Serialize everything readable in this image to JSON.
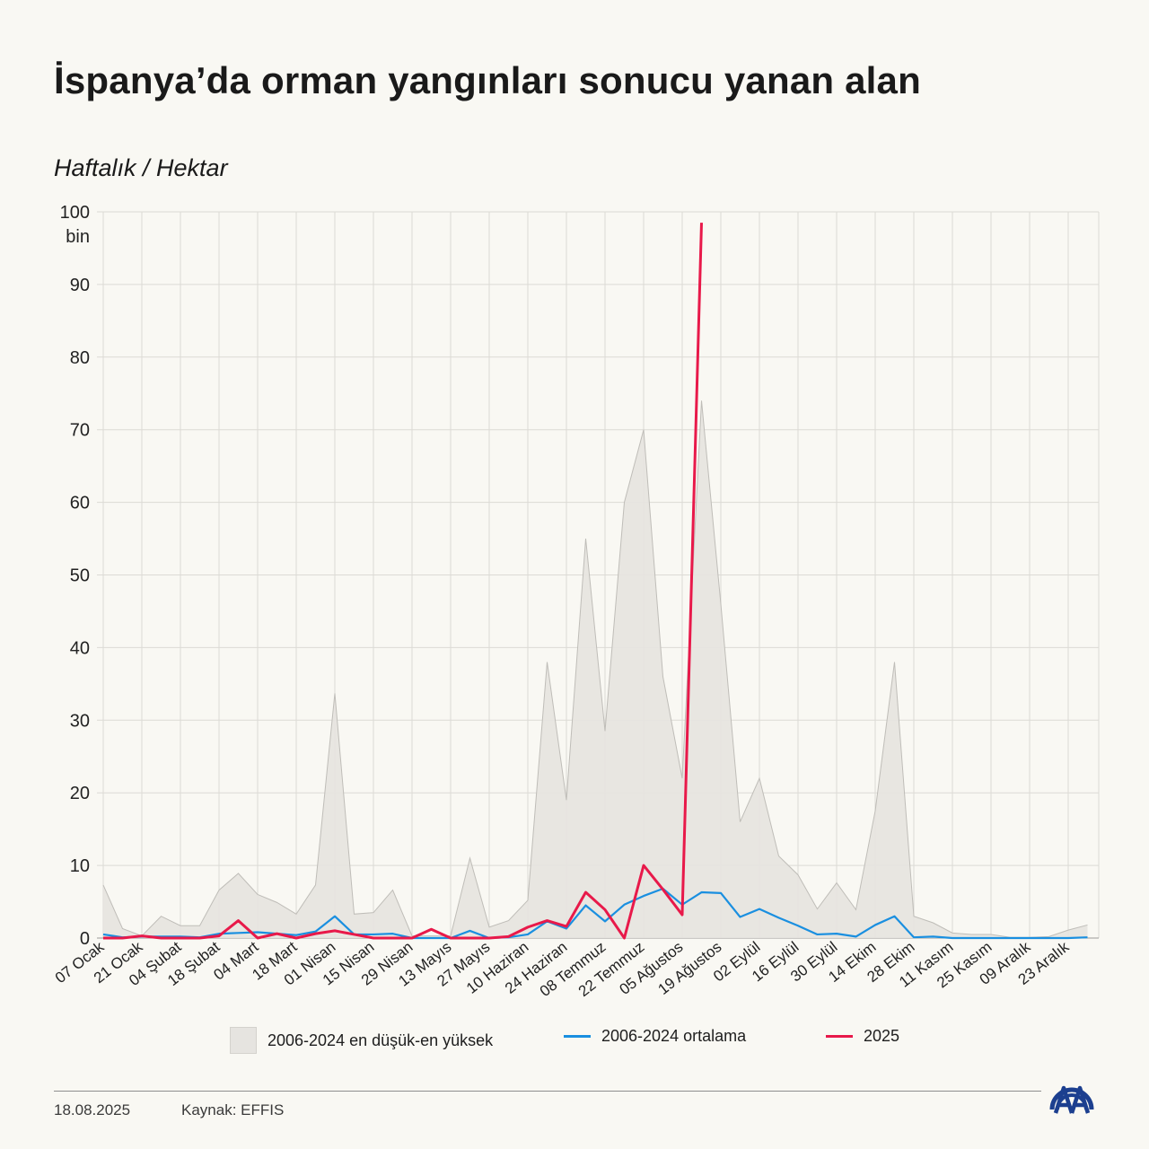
{
  "header": {
    "title": "İspanya’da orman yangınları sonucu yanan alan",
    "subtitle": "Haftalık / Hektar"
  },
  "footer": {
    "date": "18.08.2025",
    "source": "Kaynak: EFFIS",
    "logo_icon": "aa-logo-icon"
  },
  "colors": {
    "background": "#f9f8f3",
    "range_fill": "#e6e4e0",
    "range_stroke": "#bfbdb8",
    "average": "#1a8fe0",
    "current_year": "#e8194a",
    "logo": "#1c3f8f"
  },
  "chart_data": {
    "type": "line",
    "ylim": [
      0,
      100
    ],
    "y_unit_label": "bin",
    "y_ticks": [
      0,
      10,
      20,
      30,
      40,
      50,
      60,
      70,
      80,
      90,
      100
    ],
    "grid": true,
    "legend_position": "bottom",
    "x_labels": [
      "07 Ocak",
      "21 Ocak",
      "04 Şubat",
      "18 Şubat",
      "04 Mart",
      "18 Mart",
      "01 Nisan",
      "15 Nisan",
      "29 Nisan",
      "13 Mayıs",
      "27 Mayıs",
      "10 Haziran",
      "24 Haziran",
      "08 Temmuz",
      "22 Temmuz",
      "05 Ağustos",
      "19 Ağustos",
      "02 Eylül",
      "16 Eylül",
      "30 Eylül",
      "14 Ekim",
      "28 Ekim",
      "11 Kasım",
      "25 Kasım",
      "09 Aralık",
      "23 Aralık"
    ],
    "weeks": 52,
    "series": [
      {
        "name": "2006-2024 en düşük-en yüksek",
        "kind": "range",
        "min": [
          0,
          0,
          0,
          0,
          0,
          0,
          0,
          0,
          0,
          0,
          0,
          0,
          0,
          0,
          0,
          0,
          0,
          0,
          0,
          0,
          0,
          0,
          0,
          0,
          0,
          0,
          0,
          0,
          0,
          0,
          0,
          0,
          0,
          0,
          0,
          0,
          0,
          0,
          0,
          0,
          0,
          0,
          0,
          0,
          0,
          0,
          0,
          0,
          0,
          0,
          0,
          0
        ],
        "max": [
          7.3,
          1.3,
          0.3,
          3.0,
          1.7,
          1.7,
          6.6,
          8.9,
          6.0,
          4.9,
          3.3,
          7.3,
          33.7,
          3.3,
          3.5,
          6.6,
          0.3,
          0.3,
          0.3,
          11.0,
          1.5,
          2.4,
          5.2,
          38.0,
          19.0,
          55.0,
          28.5,
          60.0,
          70.0,
          36.0,
          22.0,
          74.0,
          46.0,
          16.0,
          22.0,
          11.3,
          8.7,
          4.0,
          7.6,
          3.9,
          17.5,
          38.0,
          3.0,
          2.1,
          0.7,
          0.5,
          0.5,
          0.1,
          0.1,
          0.2,
          1.1,
          1.8
        ]
      },
      {
        "name": "2006-2024 ortalama",
        "kind": "line",
        "values": [
          0.5,
          0.1,
          0.2,
          0.2,
          0.2,
          0.1,
          0.6,
          0.7,
          0.8,
          0.6,
          0.4,
          0.9,
          3.0,
          0.5,
          0.5,
          0.6,
          0.0,
          0.0,
          0.0,
          1.0,
          0.0,
          0.1,
          0.5,
          2.3,
          1.3,
          4.5,
          2.3,
          4.6,
          5.8,
          6.8,
          4.6,
          6.3,
          6.2,
          2.9,
          4.0,
          2.8,
          1.7,
          0.5,
          0.6,
          0.2,
          1.8,
          3.0,
          0.1,
          0.2,
          0.0,
          0.0,
          0.0,
          0.0,
          0.0,
          0.0,
          0.0,
          0.1
        ]
      },
      {
        "name": "2025",
        "kind": "line",
        "values": [
          0.0,
          0.0,
          0.3,
          0.0,
          0.0,
          0.0,
          0.3,
          2.4,
          0.0,
          0.6,
          0.0,
          0.6,
          1.0,
          0.5,
          0.0,
          0.0,
          0.0,
          1.2,
          0.0,
          0.0,
          0.0,
          0.2,
          1.5,
          2.4,
          1.6,
          6.3,
          3.9,
          0.0,
          10.0,
          6.7,
          3.2,
          98.5
        ]
      }
    ]
  }
}
